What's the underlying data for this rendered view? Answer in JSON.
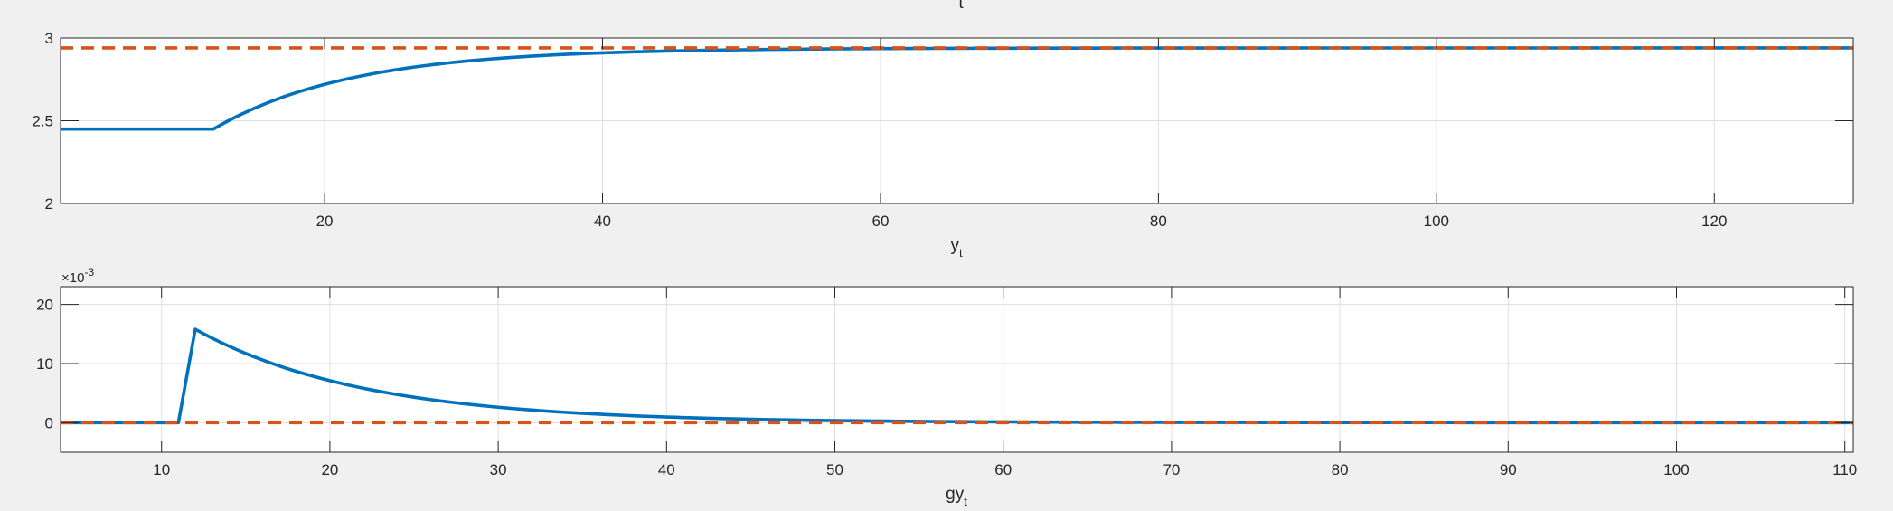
{
  "chart_data": [
    {
      "type": "line",
      "title": "",
      "top_label": "t",
      "xlabel": "y",
      "xlabel_subscript": "t",
      "ylabel": "",
      "xlim": [
        1,
        130
      ],
      "ylim": [
        2,
        3
      ],
      "xticks": [
        20,
        40,
        60,
        80,
        100,
        120
      ],
      "yticks": [
        2,
        2.5,
        3
      ],
      "ytick_labels": [
        "2",
        "2.5",
        "3"
      ],
      "grid": true,
      "series": [
        {
          "color": "#0072BD",
          "style": "solid",
          "shape": "step-then-exponential-rise",
          "x_start": 1,
          "x_break": 12,
          "x_end": 130,
          "y_initial": 2.45,
          "y_final": 2.94,
          "time_constant": 10
        },
        {
          "color": "#D95319",
          "style": "dashed",
          "shape": "constant",
          "x_start": 1,
          "x_end": 130,
          "y": 2.94
        }
      ]
    },
    {
      "type": "line",
      "title": "",
      "top_label": "",
      "xlabel": "gy",
      "xlabel_subscript": "t",
      "ylabel": "",
      "exponent_label": "×10",
      "exponent_value": "-3",
      "y_multiplier": 0.001,
      "xlim": [
        4,
        110.5
      ],
      "ylim": [
        -5,
        23
      ],
      "xticks": [
        10,
        20,
        30,
        40,
        50,
        60,
        70,
        80,
        90,
        100,
        110
      ],
      "yticks": [
        0,
        10,
        20
      ],
      "ytick_labels": [
        "0",
        "10",
        "20"
      ],
      "grid": true,
      "series": [
        {
          "color": "#0072BD",
          "style": "solid",
          "shape": "spike-then-exponential-decay",
          "x_start": 4,
          "x_break": 11,
          "x_peak": 12,
          "x_end": 110.5,
          "y_base": 0,
          "y_peak": 15.8,
          "time_constant": 10
        },
        {
          "color": "#D95319",
          "style": "dashed",
          "shape": "constant",
          "x_start": 4,
          "x_end": 110.5,
          "y": 0
        }
      ]
    }
  ]
}
